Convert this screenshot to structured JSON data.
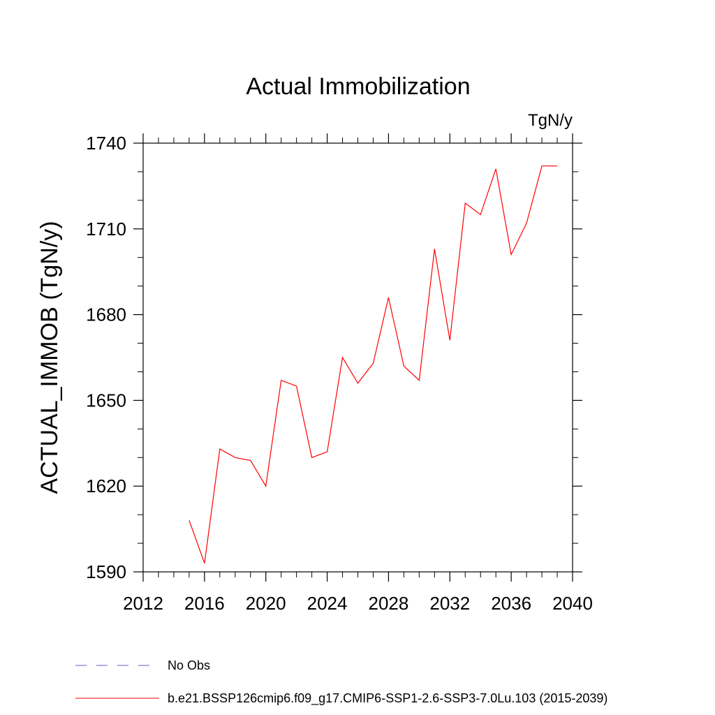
{
  "chart_data": {
    "type": "line",
    "title": "Actual Immobilization",
    "units": "TgN/y",
    "ylabel": "ACTUAL_IMMOB  (TgN/y)",
    "xlabel": "",
    "xlim": [
      2012,
      2040
    ],
    "ylim": [
      1590,
      1740
    ],
    "xticks": [
      2012,
      2016,
      2020,
      2024,
      2028,
      2032,
      2036,
      2040
    ],
    "yticks": [
      1590,
      1620,
      1650,
      1680,
      1710,
      1740
    ],
    "grid": false,
    "series": [
      {
        "name": "b.e21.BSSP126cmip6.f09_g17.CMIP6-SSP1-2.6-SSP3-7.0Lu.103 (2015-2039)",
        "color": "#ff0000",
        "x": [
          2015,
          2016,
          2017,
          2018,
          2019,
          2020,
          2021,
          2022,
          2023,
          2024,
          2025,
          2026,
          2027,
          2028,
          2029,
          2030,
          2031,
          2032,
          2033,
          2034,
          2035,
          2036,
          2037,
          2038,
          2039
        ],
        "y": [
          1608,
          1593,
          1633,
          1630,
          1629,
          1620,
          1657,
          1655,
          1630,
          1632,
          1665,
          1656,
          1663,
          1686,
          1662,
          1657,
          1703,
          1671,
          1719,
          1715,
          1731,
          1701,
          1712,
          1732,
          1732
        ]
      }
    ],
    "legend": [
      {
        "label": "No Obs",
        "style": "dashed",
        "color": "#6a5acd"
      },
      {
        "label": "b.e21.BSSP126cmip6.f09_g17.CMIP6-SSP1-2.6-SSP3-7.0Lu.103 (2015-2039)",
        "style": "solid",
        "color": "#ff0000"
      }
    ],
    "legend_position": "bottom"
  }
}
